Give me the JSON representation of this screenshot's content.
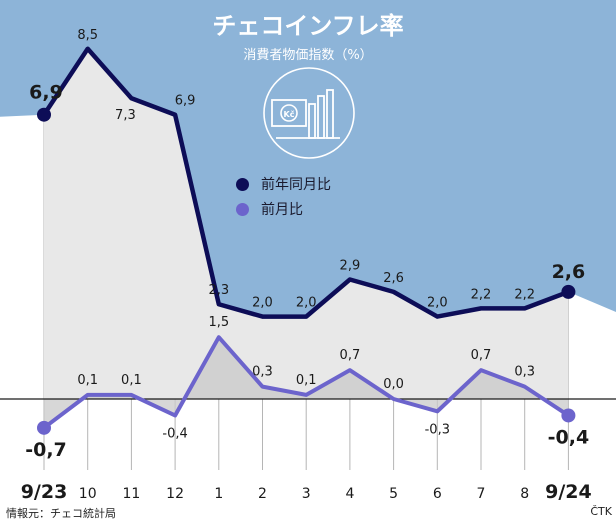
{
  "header": {
    "title": "チェコインフレ率",
    "subtitle": "消費者物価指数（%）"
  },
  "legend": [
    {
      "label": "前年同月比",
      "color": "#0d0d57"
    },
    {
      "label": "前月比",
      "color": "#6c64cc"
    }
  ],
  "footer": {
    "source": "情報元：チェコ統計局",
    "credit": "ČTK"
  },
  "colors": {
    "background_top": "#8db4d8",
    "area_fill": "#e8e8e8",
    "yoy_line": "#0d0d57",
    "mom_line": "#6c64cc",
    "gridline": "#b5b5b5"
  },
  "icon": "money-growth-chart-icon",
  "chart_data": {
    "type": "line",
    "categories": [
      "9/23",
      "10",
      "11",
      "12",
      "1",
      "2",
      "3",
      "4",
      "5",
      "6",
      "7",
      "8",
      "9/24"
    ],
    "series": [
      {
        "name": "前年同月比",
        "values": [
          6.9,
          8.5,
          7.3,
          6.9,
          2.3,
          2.0,
          2.0,
          2.9,
          2.6,
          2.0,
          2.2,
          2.2,
          2.6
        ],
        "labels": [
          "6,9",
          "8,5",
          "7,3",
          "6,9",
          "2,3",
          "2,0",
          "2,0",
          "2,9",
          "2,6",
          "2,0",
          "2,2",
          "2,2",
          "2,6"
        ]
      },
      {
        "name": "前月比",
        "values": [
          -0.7,
          0.1,
          0.1,
          -0.4,
          1.5,
          0.3,
          0.1,
          0.7,
          0.0,
          -0.3,
          0.7,
          0.3,
          -0.4
        ],
        "labels": [
          "-0,7",
          "0,1",
          "0,1",
          "-0,4",
          "1,5",
          "0,3",
          "0,1",
          "0,7",
          "0,0",
          "-0,3",
          "0,7",
          "0,3",
          "-0,4"
        ]
      }
    ],
    "grid": true,
    "legend_position": "center"
  }
}
